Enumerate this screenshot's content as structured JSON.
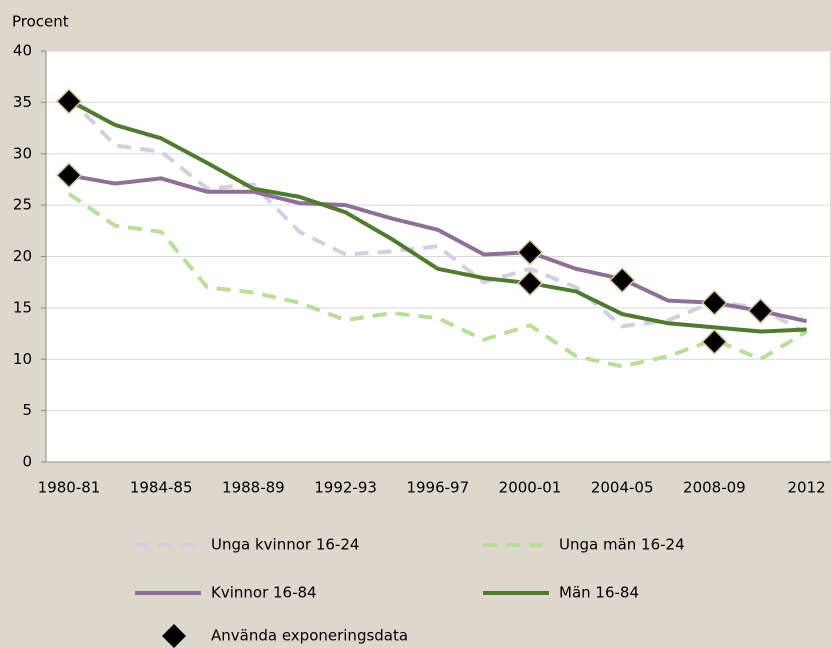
{
  "chart_data": {
    "type": "line",
    "y_label": "Procent",
    "categories": [
      "1980-81",
      null,
      "1984-85",
      null,
      "1988-89",
      null,
      "1992-93",
      null,
      "1996-97",
      null,
      "2000-01",
      null,
      "2004-05",
      null,
      "2008-09",
      null,
      "2012"
    ],
    "ylim": [
      0,
      40
    ],
    "yticks": [
      0,
      5,
      10,
      15,
      20,
      25,
      30,
      35,
      40
    ],
    "grid": true,
    "series": [
      {
        "name": "Unga kvinnor 16-24",
        "color": "#d4cfe0",
        "dashed": true,
        "values": [
          35.5,
          30.8,
          30.2,
          26.6,
          27,
          22.4,
          20.2,
          20.5,
          21,
          17.5,
          18.8,
          17,
          13.2,
          13.8,
          15.6,
          15,
          12.5
        ]
      },
      {
        "name": "Unga män 16-24",
        "color": "#b9dd9a",
        "dashed": true,
        "values": [
          26.1,
          23,
          22.4,
          17,
          16.5,
          15.5,
          13.8,
          14.5,
          14,
          11.9,
          13.3,
          10.3,
          9.3,
          10.3,
          11.9,
          10,
          12.7
        ]
      },
      {
        "name": "Kvinnor 16-84",
        "color": "#8e6f96",
        "dashed": false,
        "values": [
          27.9,
          27.1,
          27.6,
          26.3,
          26.3,
          25.2,
          25,
          23.7,
          22.6,
          20.2,
          20.4,
          18.8,
          17.8,
          15.7,
          15.5,
          14.7,
          13.7
        ]
      },
      {
        "name": "Män 16-84",
        "color": "#4f7a2f",
        "dashed": false,
        "values": [
          35.2,
          32.8,
          31.5,
          29.1,
          26.6,
          25.8,
          24.3,
          21.7,
          18.8,
          17.9,
          17.4,
          16.6,
          14.4,
          13.5,
          13.1,
          12.7,
          12.9
        ]
      }
    ],
    "markers": {
      "name": "Använda exponeringsdata",
      "color": "#000000",
      "x": [
        0,
        0,
        10,
        10,
        12,
        14,
        14,
        15
      ],
      "values": [
        35.1,
        27.9,
        20.4,
        17.4,
        17.7,
        15.5,
        11.7,
        14.7
      ]
    }
  }
}
